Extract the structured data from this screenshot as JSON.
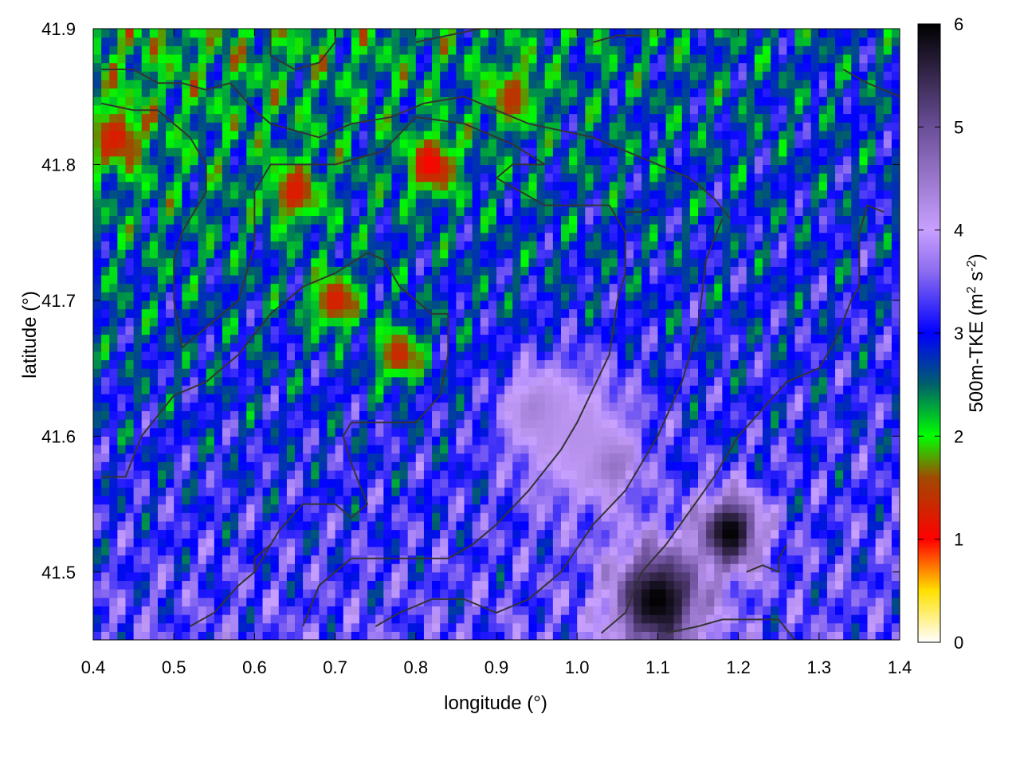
{
  "chart_data": {
    "type": "heatmap",
    "title": "",
    "xlabel": "longitude (°)",
    "ylabel": "latitude (°)",
    "colorbar": {
      "label_main": "500m-TKE (m",
      "label_sup1": "2",
      "label_mid": " s",
      "label_sup2": "-2",
      "label_end": ")",
      "range": [
        0,
        6
      ],
      "ticks": [
        "0",
        "1",
        "2",
        "3",
        "4",
        "5",
        "6"
      ],
      "stops": [
        {
          "value": 0.0,
          "color": "#ffffff"
        },
        {
          "value": 0.5,
          "color": "#ffe000"
        },
        {
          "value": 1.0,
          "color": "#ff0000"
        },
        {
          "value": 1.6,
          "color": "#a04a00"
        },
        {
          "value": 2.0,
          "color": "#00ff00"
        },
        {
          "value": 2.5,
          "color": "#00606a"
        },
        {
          "value": 3.0,
          "color": "#0000ff"
        },
        {
          "value": 3.6,
          "color": "#8c6cf0"
        },
        {
          "value": 4.0,
          "color": "#c8a0ff"
        },
        {
          "value": 5.0,
          "color": "#6a4e98"
        },
        {
          "value": 6.0,
          "color": "#000000"
        }
      ]
    },
    "xlim": [
      0.4,
      1.4
    ],
    "ylim": [
      41.45,
      41.9
    ],
    "x_ticks": [
      "0.4",
      "0.5",
      "0.6",
      "0.7",
      "0.8",
      "0.9",
      "1.0",
      "1.1",
      "1.2",
      "1.3",
      "1.4"
    ],
    "y_ticks": [
      "41.5",
      "41.6",
      "41.7",
      "41.8",
      "41.9"
    ],
    "x_tick_values": [
      0.4,
      0.5,
      0.6,
      0.7,
      0.8,
      0.9,
      1.0,
      1.1,
      1.2,
      1.3,
      1.4
    ],
    "y_tick_values": [
      41.5,
      41.6,
      41.7,
      41.8,
      41.9
    ],
    "field_description": {
      "background_value": 3.4,
      "blobs": [
        {
          "lon": 1.1,
          "lat": 41.48,
          "r": 0.06,
          "value": 6.0
        },
        {
          "lon": 1.19,
          "lat": 41.53,
          "r": 0.04,
          "value": 6.0
        },
        {
          "lon": 1.04,
          "lat": 41.58,
          "r": 0.03,
          "value": 5.2
        },
        {
          "lon": 0.95,
          "lat": 41.62,
          "r": 0.04,
          "value": 4.6
        },
        {
          "lon": 1.0,
          "lat": 41.6,
          "r": 0.08,
          "value": 4.2
        },
        {
          "lon": 0.7,
          "lat": 41.7,
          "r": 0.03,
          "value": 1.2
        },
        {
          "lon": 0.82,
          "lat": 41.8,
          "r": 0.03,
          "value": 1.0
        },
        {
          "lon": 0.78,
          "lat": 41.66,
          "r": 0.03,
          "value": 1.3
        },
        {
          "lon": 0.65,
          "lat": 41.78,
          "r": 0.03,
          "value": 1.2
        },
        {
          "lon": 0.43,
          "lat": 41.82,
          "r": 0.03,
          "value": 1.2
        },
        {
          "lon": 0.92,
          "lat": 41.85,
          "r": 0.03,
          "value": 1.4
        }
      ]
    },
    "contour_lines": [
      [
        [
          0.41,
          41.87
        ],
        [
          0.45,
          41.87
        ],
        [
          0.48,
          41.86
        ],
        [
          0.51,
          41.86
        ],
        [
          0.54,
          41.855
        ],
        [
          0.57,
          41.86
        ],
        [
          0.6,
          41.84
        ],
        [
          0.62,
          41.83
        ],
        [
          0.65,
          41.825
        ],
        [
          0.68,
          41.82
        ],
        [
          0.72,
          41.83
        ],
        [
          0.77,
          41.835
        ],
        [
          0.81,
          41.845
        ],
        [
          0.86,
          41.85
        ],
        [
          0.9,
          41.84
        ],
        [
          0.94,
          41.83
        ],
        [
          0.98,
          41.825
        ],
        [
          1.02,
          41.82
        ],
        [
          1.06,
          41.81
        ],
        [
          1.1,
          41.8
        ],
        [
          1.14,
          41.79
        ],
        [
          1.17,
          41.775
        ],
        [
          1.19,
          41.76
        ]
      ],
      [
        [
          0.41,
          41.845
        ],
        [
          0.45,
          41.84
        ],
        [
          0.48,
          41.84
        ],
        [
          0.52,
          41.82
        ],
        [
          0.54,
          41.8
        ],
        [
          0.54,
          41.78
        ],
        [
          0.51,
          41.75
        ],
        [
          0.5,
          41.73
        ],
        [
          0.5,
          41.7
        ],
        [
          0.51,
          41.665
        ],
        [
          0.54,
          41.68
        ],
        [
          0.56,
          41.69
        ],
        [
          0.58,
          41.7
        ],
        [
          0.59,
          41.72
        ],
        [
          0.6,
          41.74
        ],
        [
          0.6,
          41.78
        ],
        [
          0.62,
          41.8
        ],
        [
          0.66,
          41.8
        ],
        [
          0.7,
          41.8
        ],
        [
          0.76,
          41.81
        ],
        [
          0.8,
          41.835
        ],
        [
          0.86,
          41.83
        ],
        [
          0.92,
          41.815
        ],
        [
          0.96,
          41.8
        ]
      ],
      [
        [
          0.41,
          41.57
        ],
        [
          0.44,
          41.57
        ],
        [
          0.46,
          41.6
        ],
        [
          0.5,
          41.63
        ],
        [
          0.54,
          41.64
        ],
        [
          0.58,
          41.66
        ],
        [
          0.62,
          41.69
        ],
        [
          0.66,
          41.71
        ],
        [
          0.7,
          41.72
        ],
        [
          0.74,
          41.735
        ],
        [
          0.76,
          41.73
        ],
        [
          0.78,
          41.71
        ],
        [
          0.82,
          41.69
        ],
        [
          0.84,
          41.69
        ],
        [
          0.84,
          41.66
        ],
        [
          0.83,
          41.63
        ],
        [
          0.8,
          41.61
        ],
        [
          0.76,
          41.61
        ],
        [
          0.72,
          41.61
        ],
        [
          0.71,
          41.6
        ],
        [
          0.72,
          41.58
        ],
        [
          0.74,
          41.55
        ],
        [
          0.72,
          41.54
        ],
        [
          0.7,
          41.55
        ],
        [
          0.68,
          41.55
        ],
        [
          0.66,
          41.55
        ],
        [
          0.63,
          41.53
        ],
        [
          0.6,
          41.5
        ]
      ],
      [
        [
          0.52,
          41.46
        ],
        [
          0.55,
          41.47
        ],
        [
          0.58,
          41.49
        ],
        [
          0.6,
          41.5
        ],
        [
          0.6,
          41.51
        ],
        [
          0.62,
          41.52
        ]
      ],
      [
        [
          0.66,
          41.46
        ],
        [
          0.68,
          41.49
        ],
        [
          0.7,
          41.5
        ],
        [
          0.72,
          41.51
        ],
        [
          0.75,
          41.51
        ],
        [
          0.8,
          41.51
        ],
        [
          0.84,
          41.51
        ],
        [
          0.87,
          41.52
        ],
        [
          0.9,
          41.535
        ],
        [
          0.94,
          41.56
        ],
        [
          0.98,
          41.59
        ],
        [
          1.0,
          41.61
        ],
        [
          1.02,
          41.635
        ],
        [
          1.04,
          41.66
        ],
        [
          1.05,
          41.7
        ],
        [
          1.06,
          41.72
        ],
        [
          1.06,
          41.75
        ],
        [
          1.04,
          41.77
        ],
        [
          1.0,
          41.77
        ],
        [
          0.96,
          41.77
        ],
        [
          0.93,
          41.78
        ],
        [
          0.9,
          41.79
        ],
        [
          0.92,
          41.8
        ],
        [
          0.96,
          41.8
        ]
      ],
      [
        [
          0.75,
          41.46
        ],
        [
          0.78,
          41.47
        ],
        [
          0.82,
          41.48
        ],
        [
          0.86,
          41.48
        ],
        [
          0.9,
          41.47
        ],
        [
          0.94,
          41.48
        ],
        [
          0.98,
          41.5
        ],
        [
          1.02,
          41.535
        ],
        [
          1.06,
          41.56
        ],
        [
          1.1,
          41.6
        ],
        [
          1.13,
          41.64
        ],
        [
          1.15,
          41.68
        ],
        [
          1.16,
          41.73
        ],
        [
          1.18,
          41.76
        ]
      ],
      [
        [
          1.03,
          41.455
        ],
        [
          1.06,
          41.47
        ],
        [
          1.08,
          41.5
        ],
        [
          1.11,
          41.52
        ],
        [
          1.14,
          41.545
        ],
        [
          1.17,
          41.57
        ],
        [
          1.2,
          41.6
        ],
        [
          1.23,
          41.62
        ],
        [
          1.26,
          41.64
        ],
        [
          1.3,
          41.65
        ],
        [
          1.32,
          41.67
        ],
        [
          1.34,
          41.7
        ],
        [
          1.35,
          41.71
        ],
        [
          1.35,
          41.75
        ],
        [
          1.36,
          41.77
        ],
        [
          1.38,
          41.765
        ]
      ],
      [
        [
          1.11,
          41.455
        ],
        [
          1.15,
          41.46
        ],
        [
          1.18,
          41.465
        ],
        [
          1.21,
          41.465
        ],
        [
          1.25,
          41.465
        ],
        [
          1.27,
          41.45
        ]
      ],
      [
        [
          1.21,
          41.5
        ],
        [
          1.23,
          41.505
        ],
        [
          1.25,
          41.5
        ],
        [
          1.25,
          41.51
        ],
        [
          1.26,
          41.52
        ]
      ],
      [
        [
          0.62,
          41.9
        ],
        [
          0.62,
          41.88
        ],
        [
          0.65,
          41.87
        ],
        [
          0.68,
          41.875
        ],
        [
          0.7,
          41.89
        ],
        [
          0.7,
          41.9
        ]
      ],
      [
        [
          0.8,
          41.89
        ],
        [
          0.84,
          41.895
        ],
        [
          0.88,
          41.9
        ],
        [
          0.92,
          41.9
        ]
      ],
      [
        [
          1.02,
          41.89
        ],
        [
          1.05,
          41.895
        ],
        [
          1.08,
          41.895
        ]
      ],
      [
        [
          1.33,
          41.87
        ],
        [
          1.36,
          41.86
        ],
        [
          1.4,
          41.85
        ]
      ],
      [
        [
          1.06,
          41.765
        ],
        [
          1.08,
          41.765
        ],
        [
          1.09,
          41.767
        ]
      ]
    ]
  }
}
